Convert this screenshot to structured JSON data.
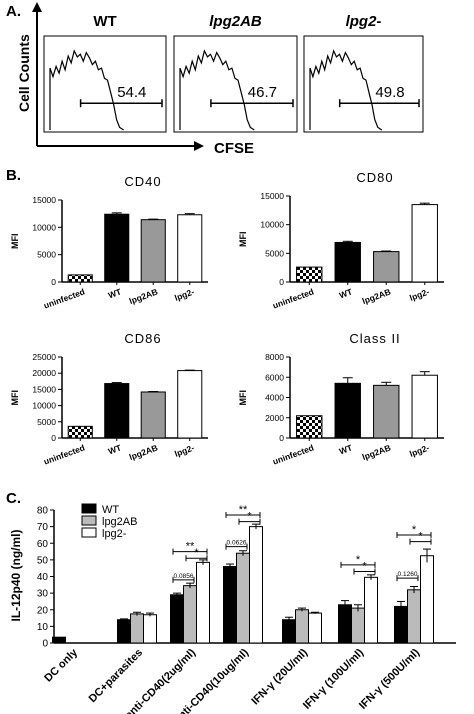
{
  "panel_a": {
    "label": "A.",
    "y_axis_label": "Cell Counts",
    "x_axis_label": "CFSE",
    "histograms": [
      {
        "title": "WT",
        "value": "54.4"
      },
      {
        "title": "lpg2AB",
        "value": "46.7"
      },
      {
        "title": "lpg2-",
        "value": "49.8"
      }
    ]
  },
  "panel_b": {
    "label": "B.",
    "charts": [
      {
        "type": "bar",
        "title": "CD40",
        "ylabel": "MFI",
        "ylim": [
          0,
          15000
        ],
        "yticks": [
          "0",
          "5000",
          "10000",
          "15000"
        ],
        "categories": [
          "uninfected",
          "WT",
          "lpg2AB",
          "lpg2-"
        ],
        "values": [
          1300,
          12400,
          11400,
          12300
        ],
        "errors": [
          0,
          250,
          100,
          200
        ]
      },
      {
        "type": "bar",
        "title": "CD80",
        "ylabel": "MFI",
        "ylim": [
          0,
          15000
        ],
        "yticks": [
          "0",
          "5000",
          "10000",
          "15000"
        ],
        "categories": [
          "uninfected",
          "WT",
          "lpg2AB",
          "lpg2-"
        ],
        "values": [
          2600,
          6900,
          5300,
          13500
        ],
        "errors": [
          0,
          200,
          100,
          250
        ]
      },
      {
        "type": "bar",
        "title": "CD86",
        "ylabel": "MFI",
        "ylim": [
          0,
          25000
        ],
        "yticks": [
          "0",
          "5000",
          "10000",
          "15000",
          "20000",
          "25000"
        ],
        "categories": [
          "uninfected",
          "WT",
          "lpg2AB",
          "lpg2-"
        ],
        "values": [
          3600,
          16800,
          14200,
          20800
        ],
        "errors": [
          0,
          300,
          150,
          150
        ]
      },
      {
        "type": "bar",
        "title": "Class II",
        "ylabel": "MFI",
        "ylim": [
          0,
          8000
        ],
        "yticks": [
          "0",
          "2000",
          "4000",
          "6000",
          "8000"
        ],
        "categories": [
          "uninfected",
          "WT",
          "lpg2AB",
          "lpg2-"
        ],
        "values": [
          2200,
          5400,
          5200,
          6200
        ],
        "errors": [
          0,
          550,
          300,
          350
        ]
      }
    ]
  },
  "panel_c": {
    "label": "C.",
    "chart_data": {
      "type": "bar",
      "ylabel": "IL-12p40 (ng/ml)",
      "ylim": [
        0,
        80
      ],
      "yticks": [
        "0",
        "10",
        "20",
        "30",
        "40",
        "50",
        "60",
        "70",
        "80"
      ],
      "categories": [
        "DC only",
        "DC+parasites",
        "anti-CD40(2ug/ml)",
        "anti-CD40(10ug/ml)",
        "IFN-γ (20U/ml)",
        "IFN-γ (100U/ml)",
        "IFN-γ (500U/ml)"
      ],
      "series": [
        {
          "name": "WT",
          "values": [
            3.5,
            14,
            29,
            46,
            14,
            23,
            22
          ],
          "errors": [
            0,
            0.5,
            1,
            1.5,
            1.5,
            2.5,
            3
          ]
        },
        {
          "name": "lpg2AB",
          "values": [
            null,
            17.5,
            34.5,
            54,
            20,
            21,
            32
          ],
          "errors": [
            0,
            1,
            1.5,
            1.5,
            1,
            2,
            2
          ]
        },
        {
          "name": "lpg2-",
          "values": [
            null,
            17,
            48.5,
            70,
            18,
            39.5,
            52.5
          ],
          "errors": [
            0,
            1,
            1.5,
            1.5,
            0.5,
            1.5,
            4
          ]
        }
      ],
      "annotations": [
        {
          "group": 2,
          "text": "**",
          "from": 0,
          "to": 2,
          "y": 55
        },
        {
          "group": 2,
          "text": "*",
          "from": 1,
          "to": 2,
          "y": 51
        },
        {
          "group": 2,
          "text": "0.0856",
          "from": 0,
          "to": 1,
          "y": 38
        },
        {
          "group": 3,
          "text": "**",
          "from": 0,
          "to": 2,
          "y": 77
        },
        {
          "group": 3,
          "text": "*",
          "from": 1,
          "to": 2,
          "y": 73
        },
        {
          "group": 3,
          "text": "0.0626",
          "from": 0,
          "to": 1,
          "y": 58
        },
        {
          "group": 5,
          "text": "*",
          "from": 0,
          "to": 2,
          "y": 47
        },
        {
          "group": 5,
          "text": "*",
          "from": 1,
          "to": 2,
          "y": 43
        },
        {
          "group": 6,
          "text": "*",
          "from": 0,
          "to": 2,
          "y": 65
        },
        {
          "group": 6,
          "text": "*",
          "from": 1,
          "to": 2,
          "y": 61
        },
        {
          "group": 6,
          "text": "0.1260",
          "from": 0,
          "to": 1,
          "y": 39
        }
      ]
    }
  }
}
